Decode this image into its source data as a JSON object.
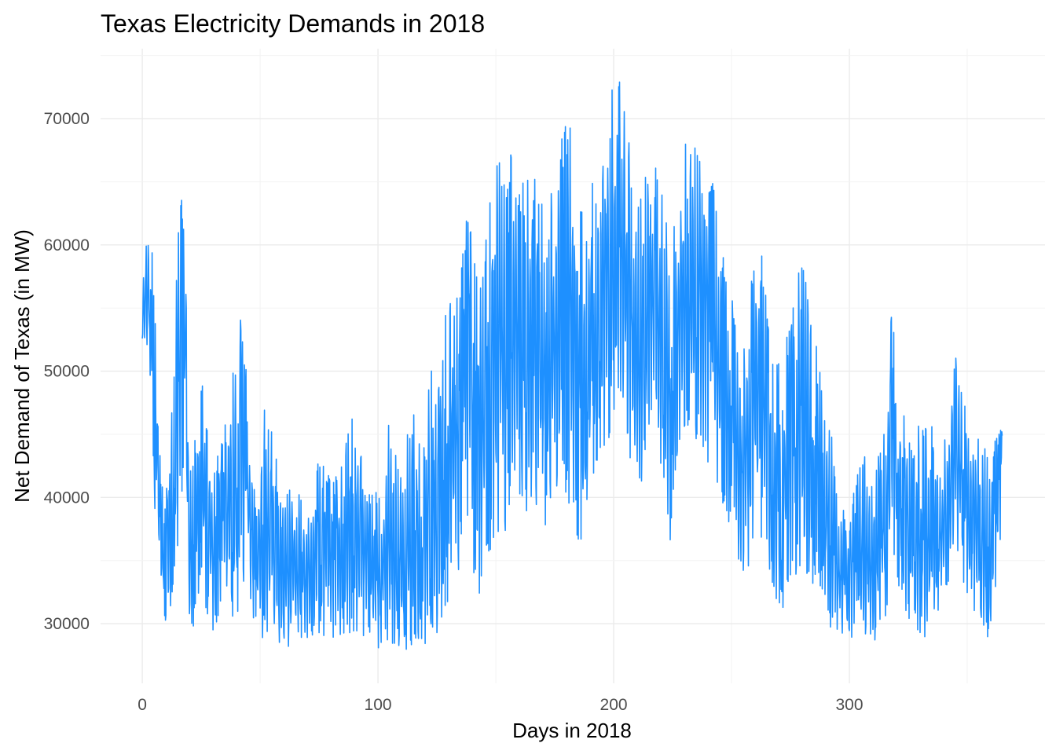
{
  "chart_data": {
    "type": "line",
    "title": "Texas Electricity Demands in 2018",
    "xlabel": "Days in 2018",
    "ylabel": "Net Demand of Texas (in MW)",
    "xlim": [
      -17.7,
      383
    ],
    "ylim": [
      25280,
      75540
    ],
    "x_ticks": [
      "0",
      "100",
      "200",
      "300"
    ],
    "y_ticks": [
      "30000",
      "40000",
      "50000",
      "60000",
      "70000"
    ],
    "grid": true,
    "line_color": "#1E90FF",
    "daily_envelope_fields": [
      "day",
      "min_MW",
      "max_MW"
    ],
    "daily_envelope": [
      [
        0,
        50500,
        57000
      ],
      [
        3,
        51000,
        62700
      ],
      [
        5,
        40000,
        57000
      ],
      [
        8,
        30500,
        41000
      ],
      [
        12,
        30000,
        45000
      ],
      [
        16,
        38000,
        65600
      ],
      [
        18,
        44000,
        62000
      ],
      [
        20,
        28000,
        42000
      ],
      [
        25,
        33000,
        49800
      ],
      [
        30,
        28500,
        42000
      ],
      [
        35,
        33000,
        46000
      ],
      [
        40,
        29000,
        52800
      ],
      [
        42,
        33000,
        55600
      ],
      [
        45,
        33000,
        48000
      ],
      [
        48,
        28000,
        40000
      ],
      [
        52,
        29000,
        48700
      ],
      [
        55,
        29000,
        45000
      ],
      [
        60,
        28000,
        42000
      ],
      [
        65,
        28000,
        41000
      ],
      [
        70,
        28500,
        40000
      ],
      [
        75,
        29000,
        43000
      ],
      [
        80,
        28500,
        42000
      ],
      [
        85,
        28000,
        42500
      ],
      [
        88,
        29000,
        47000
      ],
      [
        92,
        27500,
        44000
      ],
      [
        97,
        28000,
        44000
      ],
      [
        100,
        28000,
        40000
      ],
      [
        105,
        28500,
        47000
      ],
      [
        110,
        28000,
        42000
      ],
      [
        115,
        27500,
        48000
      ],
      [
        120,
        28000,
        44000
      ],
      [
        122,
        30000,
        52000
      ],
      [
        125,
        29000,
        47000
      ],
      [
        128,
        31000,
        56500
      ],
      [
        132,
        32000,
        55000
      ],
      [
        135,
        35000,
        58000
      ],
      [
        138,
        36000,
        64000
      ],
      [
        142,
        31000,
        58000
      ],
      [
        145,
        34000,
        60000
      ],
      [
        148,
        35000,
        67500
      ],
      [
        152,
        38000,
        67500
      ],
      [
        155,
        37000,
        67000
      ],
      [
        158,
        38000,
        68000
      ],
      [
        162,
        38000,
        65000
      ],
      [
        166,
        39000,
        66000
      ],
      [
        170,
        37000,
        64000
      ],
      [
        175,
        40000,
        65000
      ],
      [
        178,
        41000,
        69000
      ],
      [
        182,
        39000,
        70000
      ],
      [
        187,
        35000,
        62000
      ],
      [
        190,
        39000,
        66000
      ],
      [
        193,
        42000,
        66000
      ],
      [
        196,
        44000,
        71000
      ],
      [
        199,
        45000,
        73200
      ],
      [
        203,
        46000,
        73000
      ],
      [
        206,
        44000,
        70000
      ],
      [
        210,
        36000,
        64000
      ],
      [
        215,
        44000,
        68000
      ],
      [
        220,
        42000,
        66000
      ],
      [
        224,
        36000,
        59000
      ],
      [
        228,
        44000,
        69000
      ],
      [
        232,
        43000,
        69500
      ],
      [
        236,
        45000,
        69000
      ],
      [
        240,
        42000,
        68000
      ],
      [
        244,
        40000,
        63000
      ],
      [
        248,
        38000,
        58000
      ],
      [
        252,
        36000,
        55000
      ],
      [
        255,
        33000,
        52000
      ],
      [
        258,
        35000,
        56000
      ],
      [
        261,
        37000,
        64500
      ],
      [
        265,
        36000,
        55000
      ],
      [
        268,
        31000,
        50000
      ],
      [
        272,
        31000,
        52000
      ],
      [
        276,
        33000,
        55000
      ],
      [
        280,
        32000,
        60500
      ],
      [
        284,
        33000,
        54000
      ],
      [
        288,
        32000,
        50000
      ],
      [
        291,
        29500,
        48000
      ],
      [
        295,
        29000,
        40000
      ],
      [
        300,
        27500,
        38000
      ],
      [
        303,
        28000,
        42000
      ],
      [
        307,
        29000,
        44000
      ],
      [
        310,
        28000,
        41000
      ],
      [
        315,
        30000,
        46000
      ],
      [
        318,
        34000,
        56700
      ],
      [
        322,
        32000,
        48000
      ],
      [
        326,
        30000,
        44000
      ],
      [
        330,
        29000,
        46000
      ],
      [
        335,
        28500,
        46000
      ],
      [
        338,
        31000,
        42000
      ],
      [
        342,
        33000,
        47000
      ],
      [
        345,
        35000,
        52000
      ],
      [
        350,
        32000,
        47000
      ],
      [
        355,
        30000,
        46000
      ],
      [
        360,
        28000,
        44000
      ],
      [
        364,
        36000,
        45500
      ]
    ]
  }
}
